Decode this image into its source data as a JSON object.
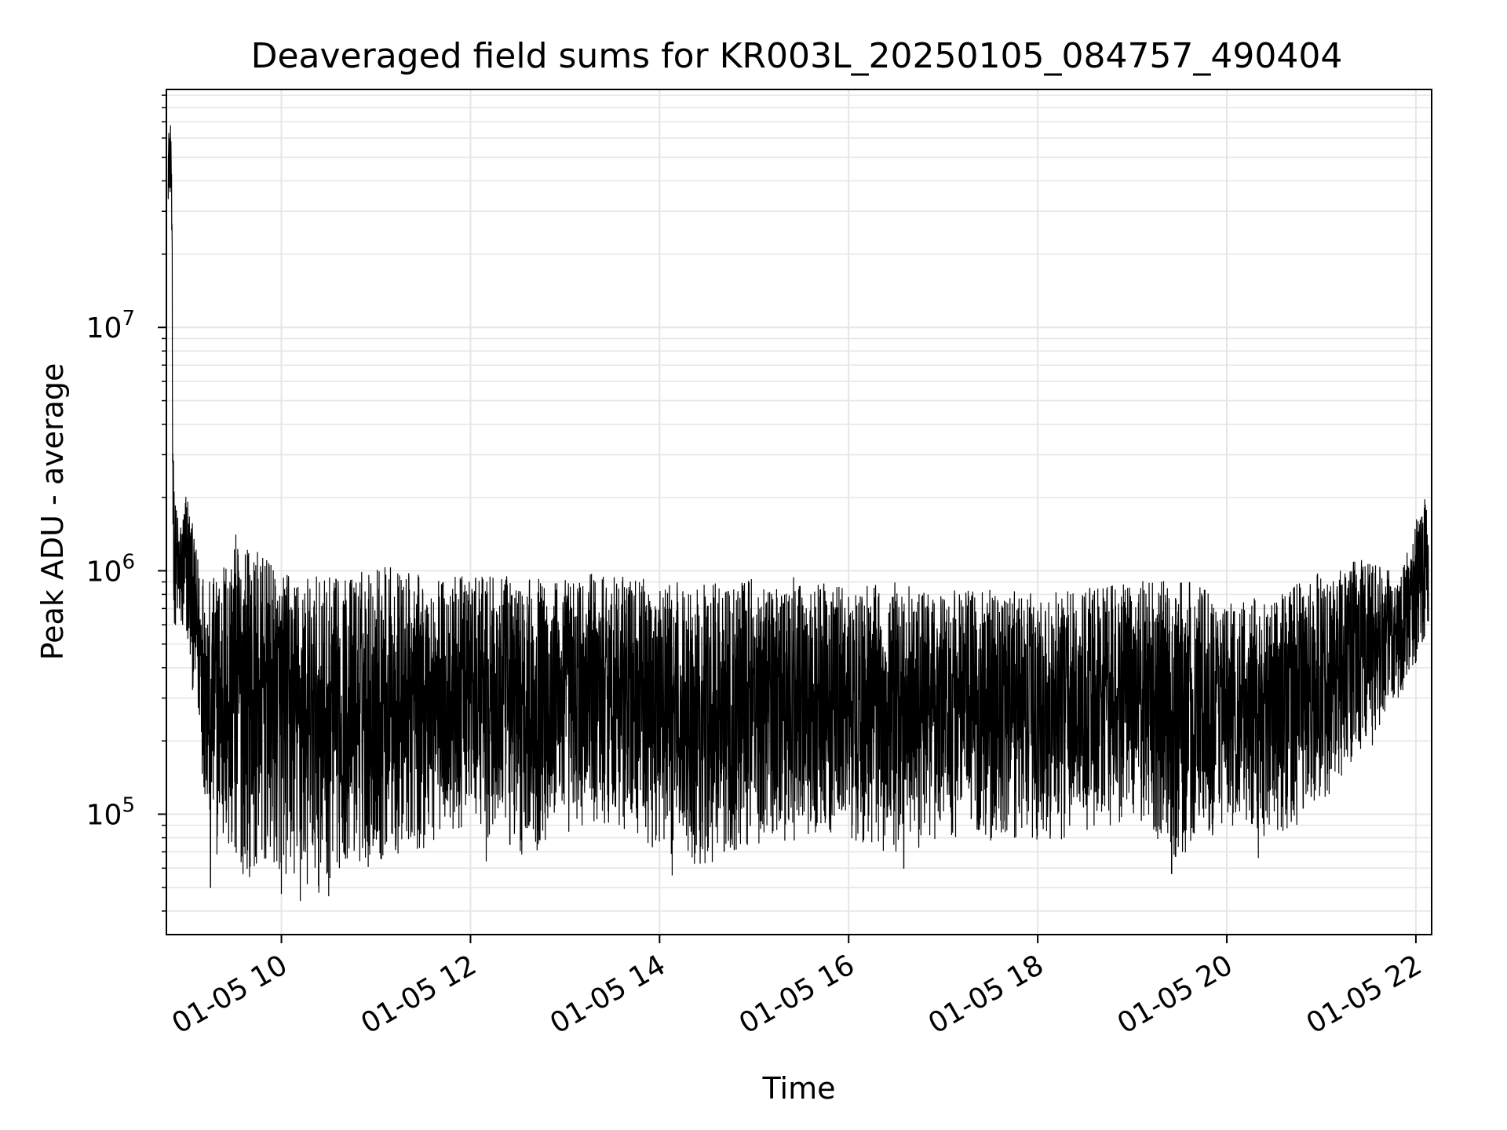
{
  "chart_data": {
    "type": "line",
    "title": "Deaveraged field sums for KR003L_20250105_084757_490404",
    "xlabel": "Time",
    "ylabel": "Peak ADU - average",
    "yscale": "log",
    "grid": true,
    "line_color": "#000000",
    "grid_color": "#e6e6e6",
    "xlim": [
      "2025-01-05 08:47",
      "2025-01-05 22:10"
    ],
    "ylim": [
      32000,
      95000000
    ],
    "x_ticks": [
      {
        "t": "2025-01-05 10:00",
        "label": "01-05 10"
      },
      {
        "t": "2025-01-05 12:00",
        "label": "01-05 12"
      },
      {
        "t": "2025-01-05 14:00",
        "label": "01-05 14"
      },
      {
        "t": "2025-01-05 16:00",
        "label": "01-05 16"
      },
      {
        "t": "2025-01-05 18:00",
        "label": "01-05 18"
      },
      {
        "t": "2025-01-05 20:00",
        "label": "01-05 20"
      },
      {
        "t": "2025-01-05 22:00",
        "label": "01-05 22"
      }
    ],
    "y_ticks": [
      {
        "value": 100000,
        "base": "10",
        "exp": "5"
      },
      {
        "value": 1000000,
        "base": "10",
        "exp": "6"
      },
      {
        "value": 10000000,
        "base": "10",
        "exp": "7"
      }
    ],
    "envelope": [
      {
        "t": "2025-01-05 08:48",
        "low": 700000,
        "high": 65000000
      },
      {
        "t": "2025-01-05 08:50",
        "low": 700000,
        "high": 70000000
      },
      {
        "t": "2025-01-05 08:52",
        "low": 600000,
        "high": 2000000
      },
      {
        "t": "2025-01-05 08:56",
        "low": 500000,
        "high": 1600000
      },
      {
        "t": "2025-01-05 09:00",
        "low": 450000,
        "high": 2400000
      },
      {
        "t": "2025-01-05 09:05",
        "low": 280000,
        "high": 1300000
      },
      {
        "t": "2025-01-05 09:15",
        "low": 70000,
        "high": 900000
      },
      {
        "t": "2025-01-05 09:30",
        "low": 55000,
        "high": 1450000
      },
      {
        "t": "2025-01-05 10:00",
        "low": 55000,
        "high": 1000000
      },
      {
        "t": "2025-01-05 10:20",
        "low": 45000,
        "high": 950000
      },
      {
        "t": "2025-01-05 10:40",
        "low": 60000,
        "high": 950000
      },
      {
        "t": "2025-01-05 11:00",
        "low": 60000,
        "high": 1100000
      },
      {
        "t": "2025-01-05 11:30",
        "low": 70000,
        "high": 950000
      },
      {
        "t": "2025-01-05 12:00",
        "low": 90000,
        "high": 950000
      },
      {
        "t": "2025-01-05 12:30",
        "low": 65000,
        "high": 950000
      },
      {
        "t": "2025-01-05 13:00",
        "low": 80000,
        "high": 950000
      },
      {
        "t": "2025-01-05 13:30",
        "low": 90000,
        "high": 1000000
      },
      {
        "t": "2025-01-05 14:00",
        "low": 70000,
        "high": 900000
      },
      {
        "t": "2025-01-05 14:30",
        "low": 60000,
        "high": 900000
      },
      {
        "t": "2025-01-05 15:00",
        "low": 75000,
        "high": 950000
      },
      {
        "t": "2025-01-05 15:30",
        "low": 75000,
        "high": 950000
      },
      {
        "t": "2025-01-05 16:00",
        "low": 80000,
        "high": 850000
      },
      {
        "t": "2025-01-05 16:30",
        "low": 65000,
        "high": 900000
      },
      {
        "t": "2025-01-05 17:00",
        "low": 80000,
        "high": 850000
      },
      {
        "t": "2025-01-05 17:30",
        "low": 75000,
        "high": 850000
      },
      {
        "t": "2025-01-05 18:00",
        "low": 75000,
        "high": 800000
      },
      {
        "t": "2025-01-05 18:30",
        "low": 80000,
        "high": 850000
      },
      {
        "t": "2025-01-05 19:00",
        "low": 85000,
        "high": 900000
      },
      {
        "t": "2025-01-05 19:30",
        "low": 60000,
        "high": 950000
      },
      {
        "t": "2025-01-05 20:00",
        "low": 90000,
        "high": 750000
      },
      {
        "t": "2025-01-05 20:30",
        "low": 75000,
        "high": 800000
      },
      {
        "t": "2025-01-05 21:00",
        "low": 110000,
        "high": 1000000
      },
      {
        "t": "2025-01-05 21:30",
        "low": 180000,
        "high": 1150000
      },
      {
        "t": "2025-01-05 21:50",
        "low": 300000,
        "high": 950000
      },
      {
        "t": "2025-01-05 22:00",
        "low": 400000,
        "high": 1600000
      },
      {
        "t": "2025-01-05 22:05",
        "low": 500000,
        "high": 2300000
      },
      {
        "t": "2025-01-05 22:08",
        "low": 600000,
        "high": 1500000
      }
    ],
    "spike_minima": [
      {
        "t": "2025-01-05 09:15",
        "value": 50000
      },
      {
        "t": "2025-01-05 10:00",
        "value": 47000
      },
      {
        "t": "2025-01-05 10:12",
        "value": 44000
      },
      {
        "t": "2025-01-05 10:30",
        "value": 46000
      },
      {
        "t": "2025-01-05 12:10",
        "value": 64000
      },
      {
        "t": "2025-01-05 14:08",
        "value": 56000
      },
      {
        "t": "2025-01-05 16:35",
        "value": 60000
      },
      {
        "t": "2025-01-05 19:25",
        "value": 57000
      },
      {
        "t": "2025-01-05 20:20",
        "value": 66000
      }
    ]
  }
}
